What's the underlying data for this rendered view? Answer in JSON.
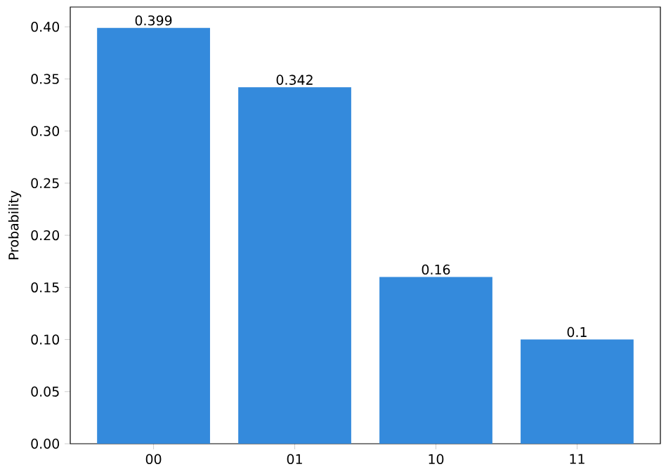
{
  "chart_data": {
    "type": "bar",
    "ylabel": "Probability",
    "categories": [
      "00",
      "01",
      "10",
      "11"
    ],
    "values": [
      0.399,
      0.342,
      0.16,
      0.1
    ],
    "color": "#348adc",
    "data_labels": true,
    "ylim": [
      0,
      0.419
    ],
    "yticks": [
      {
        "value": 0,
        "label": "0.00"
      },
      {
        "value": 0.05,
        "label": "0.05"
      },
      {
        "value": 0.1,
        "label": "0.10"
      },
      {
        "value": 0.15,
        "label": "0.15"
      },
      {
        "value": 0.2,
        "label": "0.20"
      },
      {
        "value": 0.25,
        "label": "0.25"
      },
      {
        "value": 0.3,
        "label": "0.30"
      },
      {
        "value": 0.35,
        "label": "0.35"
      },
      {
        "value": 0.4,
        "label": "0.40"
      }
    ],
    "grid": false
  }
}
